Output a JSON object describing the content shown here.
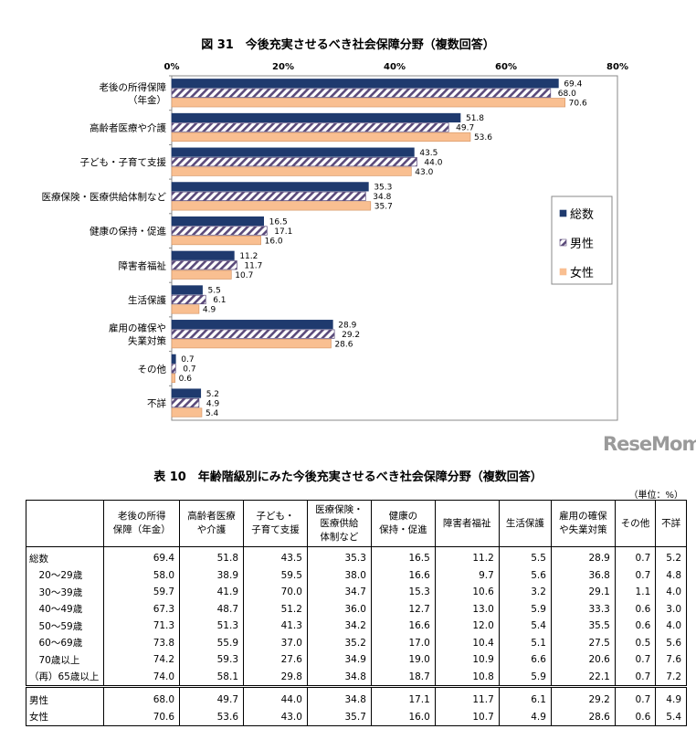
{
  "chart_data": {
    "type": "bar",
    "orientation": "horizontal",
    "title": "図 31　今後充実させるべき社会保障分野（複数回答）",
    "categories": [
      "老後の所得保障\n（年金）",
      "高齢者医療や介護",
      "子ども・子育て支援",
      "医療保険・医療供給体制など",
      "健康の保持・促進",
      "障害者福祉",
      "生活保護",
      "雇用の確保や\n失業対策",
      "その他",
      "不詳"
    ],
    "series": [
      {
        "name": "総数",
        "color": "#1f3a6e",
        "pattern": "solid",
        "values": [
          69.4,
          51.8,
          43.5,
          35.3,
          16.5,
          11.2,
          5.5,
          28.9,
          0.7,
          5.2
        ]
      },
      {
        "name": "男性",
        "color": "#5a4a7a",
        "pattern": "hatch",
        "values": [
          68.0,
          49.7,
          44.0,
          34.8,
          17.1,
          11.7,
          6.1,
          29.2,
          0.7,
          4.9
        ]
      },
      {
        "name": "女性",
        "color": "#f9bf91",
        "pattern": "solid",
        "values": [
          70.6,
          53.6,
          43.0,
          35.7,
          16.0,
          10.7,
          4.9,
          28.6,
          0.6,
          5.4
        ]
      }
    ],
    "xlim": [
      0,
      80
    ],
    "xticks": [
      "0%",
      "20%",
      "40%",
      "60%",
      "80%"
    ],
    "legend": "right",
    "grid": false
  },
  "table": {
    "title": "表 10　年齢階級別にみた今後充実させるべき社会保障分野（複数回答）",
    "unit": "（単位：%）",
    "headers": [
      "",
      "老後の所得\n保障（年金）",
      "高齢者医療\nや介護",
      "子ども・\n子育て支援",
      "医療保険・\n医療供給\n体制など",
      "健康の\n保持・促進",
      "障害者福祉",
      "生活保護",
      "雇用の確保\nや失業対策",
      "その他",
      "不詳"
    ],
    "rows": [
      [
        "総数",
        "69.4",
        "51.8",
        "43.5",
        "35.3",
        "16.5",
        "11.2",
        "5.5",
        "28.9",
        "0.7",
        "5.2"
      ],
      [
        "　20～29歳",
        "58.0",
        "38.9",
        "59.5",
        "38.0",
        "16.6",
        "9.7",
        "5.6",
        "36.8",
        "0.7",
        "4.8"
      ],
      [
        "　30～39歳",
        "59.7",
        "41.9",
        "70.0",
        "34.7",
        "15.3",
        "10.6",
        "3.2",
        "29.1",
        "1.1",
        "4.0"
      ],
      [
        "　40～49歳",
        "67.3",
        "48.7",
        "51.2",
        "36.0",
        "12.7",
        "13.0",
        "5.9",
        "33.3",
        "0.6",
        "3.0"
      ],
      [
        "　50～59歳",
        "71.3",
        "51.3",
        "41.3",
        "34.2",
        "16.6",
        "12.0",
        "5.4",
        "35.5",
        "0.6",
        "4.0"
      ],
      [
        "　60～69歳",
        "73.8",
        "55.9",
        "37.0",
        "35.2",
        "17.0",
        "10.4",
        "5.1",
        "27.5",
        "0.5",
        "5.6"
      ],
      [
        "　70歳以上",
        "74.2",
        "59.3",
        "27.6",
        "34.9",
        "19.0",
        "10.9",
        "6.6",
        "20.6",
        "0.7",
        "7.6"
      ],
      [
        "（再）65歳以上",
        "74.0",
        "58.1",
        "29.8",
        "34.8",
        "18.7",
        "10.8",
        "5.9",
        "22.1",
        "0.7",
        "7.2"
      ],
      [
        "男性",
        "68.0",
        "49.7",
        "44.0",
        "34.8",
        "17.1",
        "11.7",
        "6.1",
        "29.2",
        "0.7",
        "4.9"
      ],
      [
        "女性",
        "70.6",
        "53.6",
        "43.0",
        "35.7",
        "16.0",
        "10.7",
        "4.9",
        "28.6",
        "0.6",
        "5.4"
      ]
    ]
  },
  "watermark": "ReseMom"
}
